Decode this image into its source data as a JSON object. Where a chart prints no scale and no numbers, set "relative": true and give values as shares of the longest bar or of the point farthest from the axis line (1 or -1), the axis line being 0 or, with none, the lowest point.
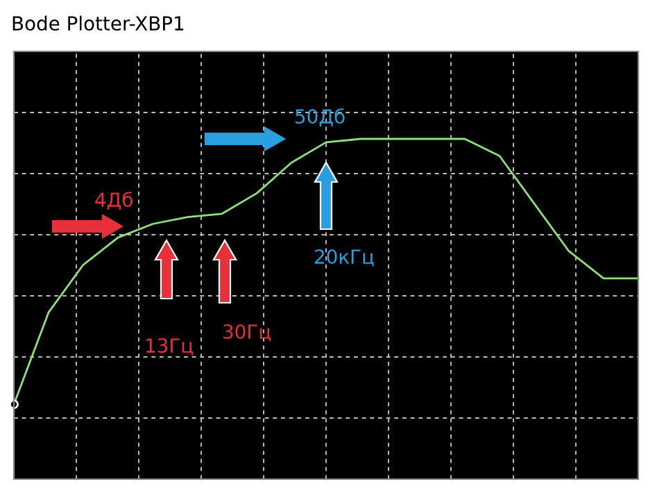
{
  "chart_data": {
    "type": "line",
    "title": "Bode Plotter-XBP1",
    "relative": true,
    "tick_labels": false,
    "grid": true,
    "marker": "none",
    "line_style": "solid",
    "categories": [
      null,
      null,
      null,
      null,
      null,
      null,
      null,
      null,
      null,
      null,
      null,
      null,
      null,
      null,
      null,
      null,
      null,
      null,
      null
    ],
    "series": [
      {
        "color": "#8ee07a",
        "values": [
          0.22,
          0.49,
          0.63,
          0.71,
          0.75,
          0.77,
          0.78,
          0.84,
          0.93,
          0.99,
          1,
          1,
          1,
          1,
          0.95,
          0.81,
          0.67,
          0.59,
          0.59
        ]
      }
    ],
    "annotations": [
      "4Дб",
      "13Гц",
      "30Гц",
      "50Дб",
      "20кГц"
    ]
  }
}
